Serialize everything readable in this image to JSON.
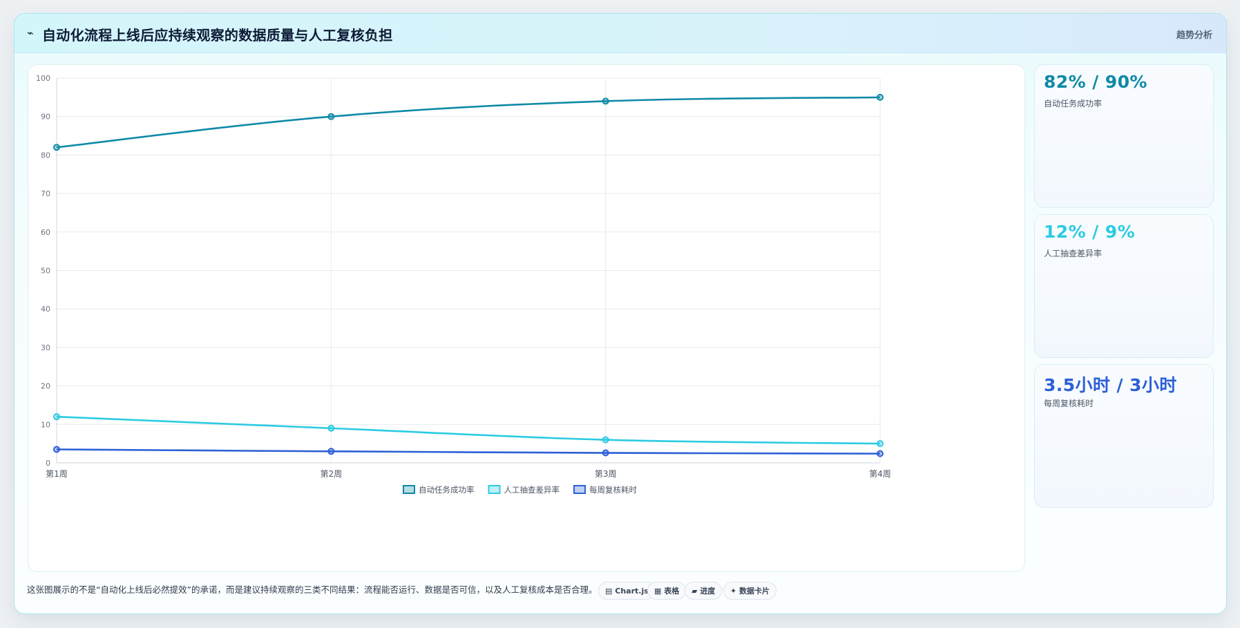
{
  "header": {
    "icon": "chart-line-icon",
    "title": "自动化流程上线后应持续观察的数据质量与人工复核负担",
    "tag": "趋势分析"
  },
  "stats": [
    {
      "value": "82% / 90%",
      "label": "自动任务成功率",
      "color": "#0e8aa6"
    },
    {
      "value": "12% / 9%",
      "label": "人工抽查差异率",
      "color": "#2ccbe2"
    },
    {
      "value": "3.5小时 / 3小时",
      "label": "每周复核耗时",
      "color": "#2c5fd6"
    }
  ],
  "footnote": "这张图展示的不是“自动化上线后必然提效”的承诺，而是建议持续观察的三类不同结果：流程能否运行、数据是否可信，以及人工复核成本是否合理。",
  "pills": [
    {
      "icon": "chart-icon",
      "glyph": "▤",
      "label": "Chart.js"
    },
    {
      "icon": "table-icon",
      "glyph": "▦",
      "label": "表格"
    },
    {
      "icon": "progress-icon",
      "glyph": "▰",
      "label": "进度"
    },
    {
      "icon": "sparkle-icon",
      "glyph": "✦",
      "label": "数据卡片"
    }
  ],
  "chart_data": {
    "type": "line",
    "categories": [
      "第1周",
      "第2周",
      "第3周",
      "第4周"
    ],
    "ylim": [
      0,
      100
    ],
    "yticks": [
      0,
      10,
      20,
      30,
      40,
      50,
      60,
      70,
      80,
      90,
      100
    ],
    "grid": true,
    "legend_position": "bottom",
    "series": [
      {
        "name": "自动任务成功率",
        "values": [
          82,
          90,
          94,
          95
        ],
        "color": "#0e8aa6"
      },
      {
        "name": "人工抽查差异率",
        "values": [
          12,
          9,
          6,
          5
        ],
        "color": "#2ccbe2"
      },
      {
        "name": "每周复核耗时",
        "values": [
          3.5,
          3,
          2.6,
          2.4
        ],
        "color": "#2c5fd6"
      }
    ]
  }
}
